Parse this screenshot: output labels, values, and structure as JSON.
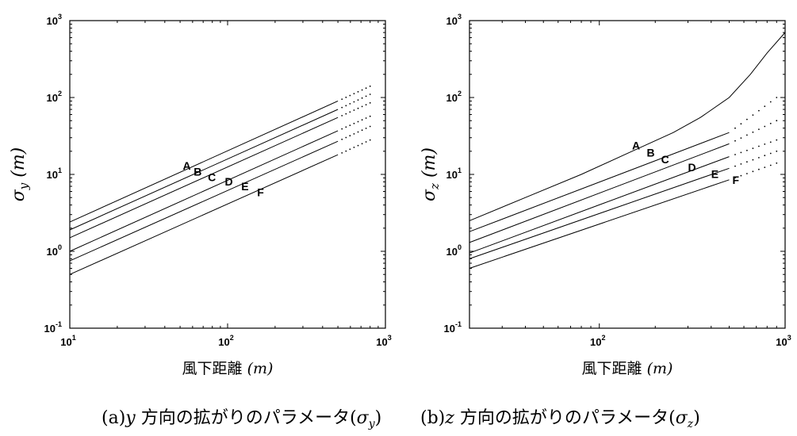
{
  "chart_data": [
    {
      "id": "sigma_y",
      "type": "line",
      "xlabel": "風下距離 (m)",
      "ylabel": "σ y (m)",
      "xscale": "log",
      "yscale": "log",
      "xlim": [
        10,
        1000
      ],
      "ylim": [
        0.1,
        1000
      ],
      "xticks": [
        {
          "base": "10",
          "exp": "1",
          "value": 10
        },
        {
          "base": "10",
          "exp": "2",
          "value": 100
        },
        {
          "base": "10",
          "exp": "3",
          "value": 1000
        }
      ],
      "yticks": [
        {
          "base": "10",
          "exp": "-1",
          "value": 0.1
        },
        {
          "base": "10",
          "exp": "0",
          "value": 1
        },
        {
          "base": "10",
          "exp": "1",
          "value": 10
        },
        {
          "base": "10",
          "exp": "2",
          "value": 100
        },
        {
          "base": "10",
          "exp": "3",
          "value": 1000
        }
      ],
      "series": [
        {
          "name": "A",
          "x": [
            10,
            500
          ],
          "y": [
            2.4,
            90
          ],
          "dotted_to": [
            800,
            140
          ],
          "label_at": [
            52,
            11.5
          ]
        },
        {
          "name": "B",
          "x": [
            10,
            500
          ],
          "y": [
            1.9,
            70
          ],
          "dotted_to": [
            800,
            110
          ],
          "label_at": [
            61,
            9.7
          ]
        },
        {
          "name": "C",
          "x": [
            10,
            500
          ],
          "y": [
            1.5,
            55
          ],
          "dotted_to": [
            800,
            85
          ],
          "label_at": [
            75,
            8.2
          ]
        },
        {
          "name": "D",
          "x": [
            10,
            500
          ],
          "y": [
            1.0,
            37
          ],
          "dotted_to": [
            800,
            57
          ],
          "label_at": [
            96,
            7.2
          ]
        },
        {
          "name": "E",
          "x": [
            10,
            500
          ],
          "y": [
            0.75,
            27
          ],
          "dotted_to": [
            800,
            42
          ],
          "label_at": [
            122,
            6.2
          ]
        },
        {
          "name": "F",
          "x": [
            10,
            500
          ],
          "y": [
            0.5,
            18
          ],
          "dotted_to": [
            800,
            28
          ],
          "label_at": [
            154,
            5.2
          ]
        }
      ],
      "caption": {
        "prefix": "(a)",
        "var": "y",
        "text": " 方向の拡がりのパラメータ(",
        "sym": "σ",
        "sub": "y",
        "suffix": ")"
      }
    },
    {
      "id": "sigma_z",
      "type": "line",
      "xlabel": "風下距離 (m)",
      "ylabel": "σ z (m)",
      "xscale": "log",
      "yscale": "log",
      "xlim": [
        20,
        1000
      ],
      "ylim": [
        0.1,
        1000
      ],
      "xticks": [
        {
          "base": "10",
          "exp": "2",
          "value": 100
        },
        {
          "base": "10",
          "exp": "3",
          "value": 1000
        }
      ],
      "yticks": [
        {
          "base": "10",
          "exp": "-1",
          "value": 0.1
        },
        {
          "base": "10",
          "exp": "0",
          "value": 1
        },
        {
          "base": "10",
          "exp": "1",
          "value": 10
        },
        {
          "base": "10",
          "exp": "2",
          "value": 100
        },
        {
          "base": "10",
          "exp": "3",
          "value": 1000
        }
      ],
      "series": [
        {
          "name": "A",
          "x": [
            20,
            40,
            80,
            150,
            250,
            350,
            500,
            650,
            800,
            1000
          ],
          "y": [
            2.5,
            5,
            10,
            20,
            35,
            55,
            100,
            200,
            380,
            700
          ],
          "label_at": [
            150,
            21
          ]
        },
        {
          "name": "B",
          "x": [
            20,
            500
          ],
          "y": [
            1.8,
            35
          ],
          "dotted_to": [
            900,
            100
          ],
          "label_at": [
            180,
            17
          ]
        },
        {
          "name": "C",
          "x": [
            20,
            500
          ],
          "y": [
            1.3,
            25
          ],
          "dotted_to": [
            900,
            50
          ],
          "label_at": [
            215,
            14
          ]
        },
        {
          "name": "D",
          "x": [
            20,
            500
          ],
          "y": [
            0.95,
            17
          ],
          "dotted_to": [
            900,
            28
          ],
          "label_at": [
            300,
            11
          ]
        },
        {
          "name": "E",
          "x": [
            20,
            500
          ],
          "y": [
            0.8,
            12
          ],
          "dotted_to": [
            900,
            20
          ],
          "label_at": [
            400,
            9
          ]
        },
        {
          "name": "F",
          "x": [
            20,
            500
          ],
          "y": [
            0.6,
            8.5
          ],
          "dotted_to": [
            900,
            14
          ],
          "label_at": [
            520,
            7.5
          ]
        }
      ],
      "caption": {
        "prefix": "(b)",
        "var": "z",
        "text": " 方向の拡がりのパラメータ(",
        "sym": "σ",
        "sub": "z",
        "suffix": ")"
      }
    }
  ]
}
